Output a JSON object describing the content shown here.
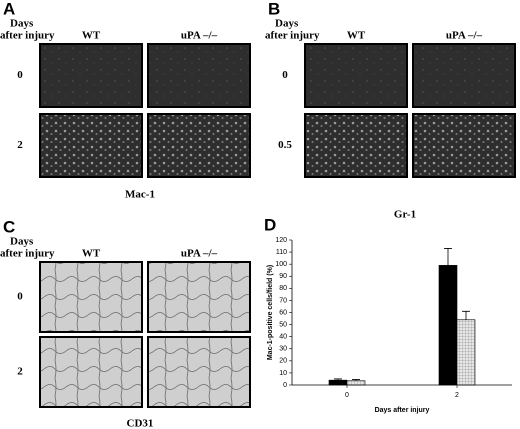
{
  "panels": [
    {
      "letter": "A",
      "row_header": [
        "Days",
        "after injury"
      ],
      "columns": [
        "WT",
        "uPA –/–"
      ],
      "rows": [
        "0",
        "2"
      ],
      "caption": "Mac-1"
    },
    {
      "letter": "B",
      "row_header": [
        "Days",
        "after injury"
      ],
      "columns": [
        "WT",
        "uPA –/–"
      ],
      "rows": [
        "0",
        "0.5"
      ],
      "caption": "Gr-1"
    },
    {
      "letter": "C",
      "row_header": [
        "Days",
        "after injury"
      ],
      "columns": [
        "WT",
        "uPA –/–"
      ],
      "rows": [
        "0",
        "2"
      ],
      "caption": "CD31"
    }
  ],
  "chart_data": {
    "type": "bar",
    "letter": "D",
    "categories": [
      "0",
      "2"
    ],
    "series": [
      {
        "color": "#000000",
        "values": [
          4,
          99
        ],
        "errors": [
          1,
          14
        ]
      },
      {
        "color": "#d8d8d8",
        "values": [
          3.5,
          54
        ],
        "errors": [
          1,
          7
        ]
      }
    ],
    "ylim": [
      0,
      120
    ],
    "yticks": [
      0,
      10,
      20,
      30,
      40,
      50,
      60,
      70,
      80,
      90,
      100,
      110,
      120
    ],
    "ylabel": "Mac-1-positive cells/field (%)",
    "xlabel": "Days after injury"
  }
}
